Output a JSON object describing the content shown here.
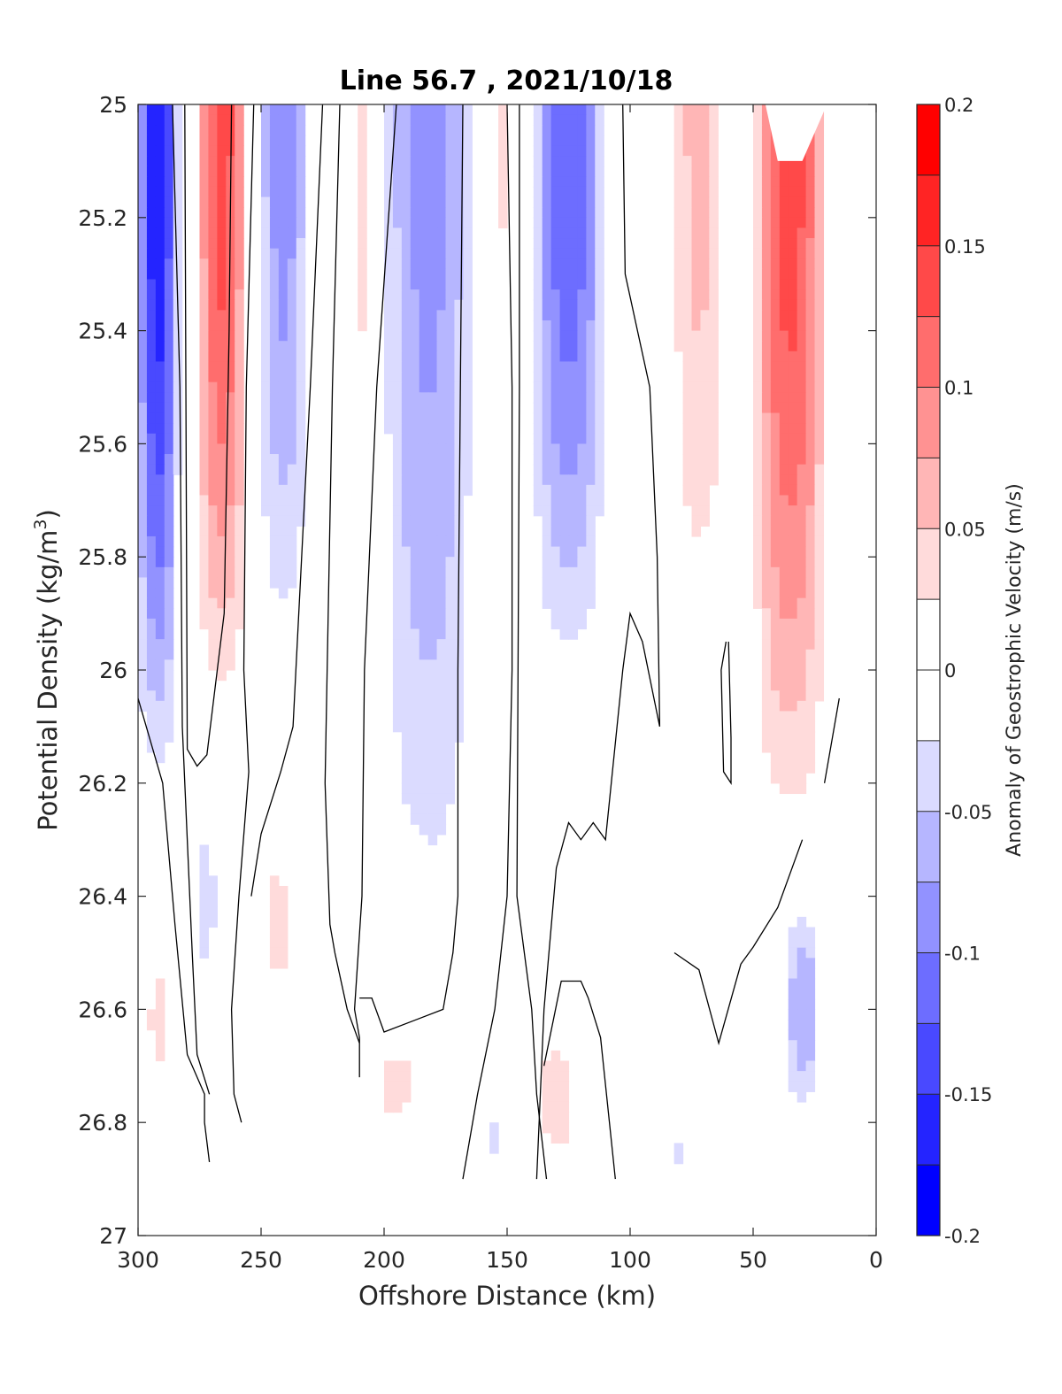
{
  "chart_data": {
    "type": "contour",
    "title": "Line 56.7 , 2021/10/18",
    "xlabel": "Offshore Distance (km)",
    "ylabel_main": "Potential Density (kg/m",
    "ylabel_sup": "3",
    "ylabel_close": ")",
    "xlim": [
      300,
      0
    ],
    "ylim": [
      25,
      27
    ],
    "y_reversed": true,
    "x_ticks": [
      "300",
      "250",
      "200",
      "150",
      "100",
      "50",
      "0"
    ],
    "y_ticks": [
      "25",
      "25.2",
      "25.4",
      "25.6",
      "25.8",
      "26",
      "26.2",
      "26.4",
      "26.6",
      "26.8",
      "27"
    ],
    "colorbar": {
      "label": "Anomaly of Geostrophic Velocity (m/s)",
      "range": [
        -0.2,
        0.2
      ],
      "ticks": [
        "0.2",
        "0.15",
        "0.1",
        "0.05",
        "0",
        "-0.05",
        "-0.1",
        "-0.15",
        "-0.2"
      ],
      "level_step": 0.025,
      "colormap": "blue-white-red"
    },
    "fields": [
      {
        "center_x": 292,
        "top_y": 25.0,
        "bottom_y": 26.25,
        "width_km": 18,
        "peak": -0.175
      },
      {
        "center_x": 266,
        "top_y": 25.0,
        "bottom_y": 26.12,
        "width_km": 22,
        "peak": 0.14
      },
      {
        "center_x": 241,
        "top_y": 25.0,
        "bottom_y": 26.02,
        "width_km": 22,
        "peak": -0.09
      },
      {
        "center_x": 209,
        "top_y": 25.0,
        "bottom_y": 25.65,
        "width_km": 8,
        "peak": 0.04
      },
      {
        "center_x": 182,
        "top_y": 25.0,
        "bottom_y": 26.55,
        "width_km": 40,
        "peak": -0.085
      },
      {
        "center_x": 152,
        "top_y": 25.0,
        "bottom_y": 25.55,
        "width_km": 5,
        "peak": 0.03
      },
      {
        "center_x": 125,
        "top_y": 25.0,
        "bottom_y": 26.05,
        "width_km": 32,
        "peak": -0.125
      },
      {
        "center_x": 35,
        "top_y": 25.0,
        "bottom_y": 26.35,
        "width_km": 32,
        "peak": 0.14
      },
      {
        "center_x": 72,
        "top_y": 25.0,
        "bottom_y": 26.0,
        "width_km": 24,
        "peak": 0.06
      },
      {
        "center_x": 292,
        "top_y": 26.45,
        "bottom_y": 26.78,
        "width_km": 10,
        "peak": 0.035
      },
      {
        "center_x": 273,
        "top_y": 26.2,
        "bottom_y": 26.62,
        "width_km": 14,
        "peak": -0.035
      },
      {
        "center_x": 243,
        "top_y": 26.28,
        "bottom_y": 26.62,
        "width_km": 16,
        "peak": 0.035
      },
      {
        "center_x": 195,
        "top_y": 26.66,
        "bottom_y": 26.8,
        "width_km": 18,
        "peak": 0.05
      },
      {
        "center_x": 130,
        "top_y": 26.62,
        "bottom_y": 26.9,
        "width_km": 20,
        "peak": 0.04
      },
      {
        "center_x": 30,
        "top_y": 26.4,
        "bottom_y": 26.8,
        "width_km": 16,
        "peak": -0.075
      },
      {
        "center_x": 155,
        "top_y": 26.75,
        "bottom_y": 26.9,
        "width_km": 6,
        "peak": -0.03
      },
      {
        "center_x": 80,
        "top_y": 26.8,
        "bottom_y": 26.9,
        "width_km": 10,
        "peak": -0.03
      }
    ],
    "zero_contours": [
      [
        [
          300,
          26.05
        ],
        [
          290,
          26.2
        ],
        [
          285,
          26.45
        ],
        [
          280,
          26.68
        ],
        [
          273,
          26.75
        ],
        [
          273,
          26.8
        ],
        [
          271,
          26.87
        ]
      ],
      [
        [
          286,
          25.0
        ],
        [
          283,
          25.5
        ],
        [
          282,
          26.1
        ],
        [
          278,
          26.5
        ],
        [
          276,
          26.68
        ],
        [
          271,
          26.75
        ]
      ],
      [
        [
          281,
          25.0
        ],
        [
          280,
          26.14
        ],
        [
          276,
          26.17
        ],
        [
          272,
          26.15
        ],
        [
          265,
          25.9
        ],
        [
          263,
          25.4
        ],
        [
          262,
          25.0
        ]
      ],
      [
        [
          253,
          25.0
        ],
        [
          256,
          25.5
        ],
        [
          257,
          26.0
        ],
        [
          255,
          26.18
        ],
        [
          259,
          26.4
        ],
        [
          262,
          26.6
        ],
        [
          261,
          26.75
        ],
        [
          258,
          26.8
        ]
      ],
      [
        [
          225,
          25.0
        ],
        [
          230,
          25.5
        ],
        [
          237,
          26.1
        ],
        [
          242,
          26.18
        ],
        [
          250,
          26.29
        ],
        [
          254,
          26.4
        ]
      ],
      [
        [
          218,
          25.0
        ],
        [
          221,
          25.5
        ],
        [
          224,
          26.2
        ],
        [
          222,
          26.45
        ],
        [
          220,
          26.5
        ],
        [
          215,
          26.6
        ],
        [
          210,
          26.66
        ]
      ],
      [
        [
          195,
          25.0
        ],
        [
          203,
          25.5
        ],
        [
          208,
          26.0
        ],
        [
          209,
          26.4
        ],
        [
          212,
          26.6
        ],
        [
          210,
          26.65
        ],
        [
          210,
          26.72
        ]
      ],
      [
        [
          168,
          25.0
        ],
        [
          170,
          26.0
        ],
        [
          170,
          26.4
        ],
        [
          172,
          26.5
        ],
        [
          176,
          26.6
        ],
        [
          188,
          26.62
        ],
        [
          200,
          26.64
        ],
        [
          205,
          26.58
        ],
        [
          210,
          26.58
        ]
      ],
      [
        [
          150,
          25.0
        ],
        [
          148,
          25.5
        ],
        [
          148,
          26.0
        ],
        [
          150,
          26.4
        ],
        [
          155,
          26.6
        ],
        [
          162,
          26.75
        ],
        [
          168,
          26.9
        ]
      ],
      [
        [
          145,
          25.0
        ],
        [
          145,
          25.5
        ],
        [
          146,
          26.4
        ],
        [
          140,
          26.6
        ],
        [
          138,
          26.75
        ],
        [
          134,
          26.9
        ]
      ],
      [
        [
          103,
          25.0
        ],
        [
          102,
          25.3
        ],
        [
          92,
          25.5
        ],
        [
          89,
          25.8
        ],
        [
          88,
          26.1
        ],
        [
          95,
          25.95
        ],
        [
          100,
          25.9
        ],
        [
          103,
          26.0
        ],
        [
          110,
          26.3
        ],
        [
          115,
          26.27
        ],
        [
          120,
          26.3
        ],
        [
          125,
          26.27
        ],
        [
          130,
          26.35
        ],
        [
          135,
          26.6
        ],
        [
          138,
          26.9
        ]
      ],
      [
        [
          106,
          26.9
        ],
        [
          112,
          26.65
        ],
        [
          117,
          26.58
        ],
        [
          120,
          26.55
        ],
        [
          128,
          26.55
        ],
        [
          135,
          26.7
        ]
      ],
      [
        [
          82,
          26.5
        ],
        [
          72,
          26.53
        ],
        [
          64,
          26.66
        ],
        [
          55,
          26.52
        ],
        [
          50,
          26.49
        ],
        [
          40,
          26.42
        ],
        [
          30,
          26.3
        ]
      ],
      [
        [
          60,
          25.95
        ],
        [
          59,
          26.12
        ],
        [
          59,
          26.2
        ],
        [
          62,
          26.18
        ],
        [
          63,
          26.0
        ],
        [
          61,
          25.95
        ]
      ],
      [
        [
          21,
          26.2
        ],
        [
          15,
          26.05
        ]
      ]
    ],
    "masked_region": [
      [
        45,
        25.0
      ],
      [
        40,
        25.1
      ],
      [
        30,
        25.1
      ],
      [
        20,
        25.0
      ]
    ]
  }
}
